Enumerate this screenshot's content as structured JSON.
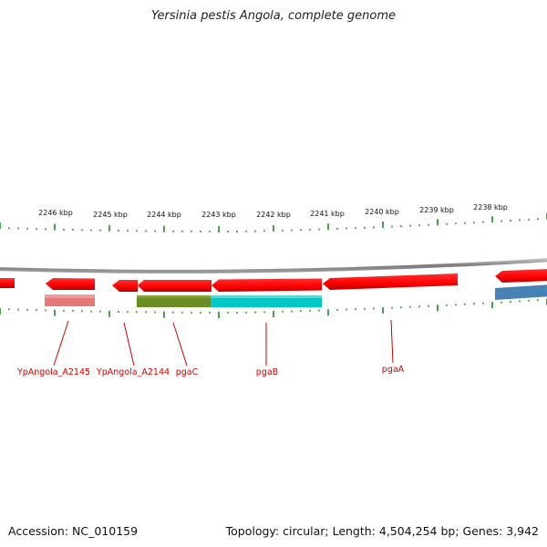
{
  "title": "Yersinia pestis Angola, complete genome",
  "footer": {
    "accession": "Accession: NC_010159",
    "info": "Topology: circular; Length: 4,504,254 bp; Genes: 3,942"
  },
  "colors": {
    "gene_red": "#ff0000",
    "gene_pink": "#e87878",
    "gene_olive": "#6b8e23",
    "gene_cyan": "#00c8c8",
    "gene_blue": "#4682b4",
    "tick_green": "#1a8a1a",
    "backbone_gray": "#888888"
  },
  "scale_labels": [
    "2246 kbp",
    "2245 kbp",
    "2244 kbp",
    "2243 kbp",
    "2242 kbp",
    "2241 kbp",
    "2240 kbp",
    "2239 kbp",
    "2238 kbp"
  ],
  "gene_labels": [
    "YpAngola_A2145",
    "YpAngola_A2144",
    "pgaC",
    "pgaB",
    "pgaA"
  ]
}
